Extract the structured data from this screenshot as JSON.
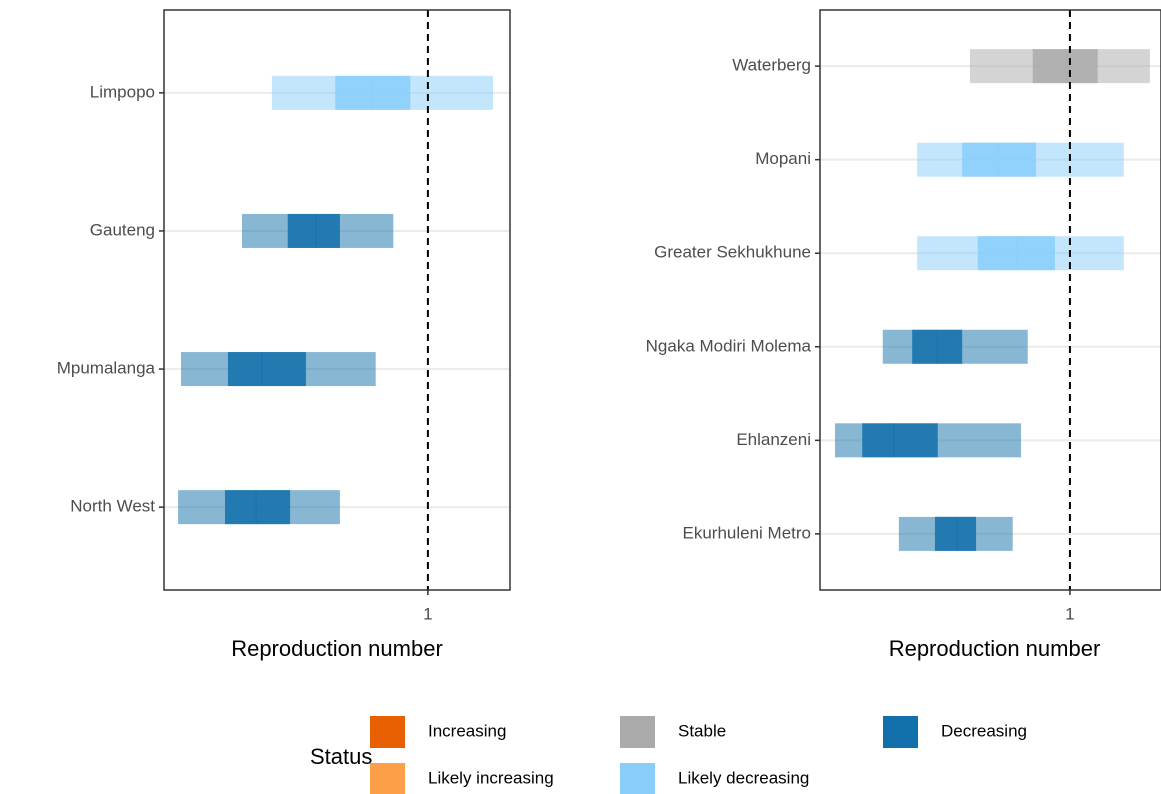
{
  "chart_data": [
    {
      "type": "interval",
      "xlabel": "Reproduction number",
      "xlim": [
        0.55,
        1.14
      ],
      "xticks": [
        1
      ],
      "vline": 1,
      "categories": [
        "Limpopo",
        "Gauteng",
        "Mpumalanga",
        "North West"
      ],
      "status": [
        "Likely decreasing",
        "Decreasing",
        "Decreasing",
        "Decreasing"
      ],
      "lower_90": [
        0.734,
        0.683,
        0.579,
        0.574
      ],
      "upper_90": [
        1.111,
        0.941,
        0.911,
        0.85
      ],
      "lower_50": [
        0.842,
        0.761,
        0.659,
        0.654
      ],
      "upper_50": [
        0.97,
        0.85,
        0.792,
        0.765
      ],
      "median": [
        0.906,
        0.809,
        0.717,
        0.707
      ]
    },
    {
      "type": "interval",
      "xlabel": "Reproduction number",
      "xlim": [
        0.55,
        1.164
      ],
      "xticks": [
        1
      ],
      "vline": 1,
      "categories": [
        "Waterberg",
        "Mopani",
        "Greater Sekhukhune",
        "Ngaka Modiri Molema",
        "Ehlanzeni",
        "Ekurhuleni Metro"
      ],
      "status": [
        "Stable",
        "Likely decreasing",
        "Likely decreasing",
        "Decreasing",
        "Decreasing",
        "Decreasing"
      ],
      "lower_90": [
        0.82,
        0.725,
        0.725,
        0.663,
        0.577,
        0.692
      ],
      "upper_90": [
        1.144,
        1.097,
        1.097,
        0.924,
        0.912,
        0.897
      ],
      "lower_50": [
        0.933,
        0.806,
        0.834,
        0.716,
        0.626,
        0.757
      ],
      "upper_50": [
        1.05,
        0.939,
        0.973,
        0.806,
        0.762,
        0.831
      ],
      "median": [
        0.993,
        0.87,
        0.905,
        0.761,
        0.683,
        0.797
      ]
    }
  ],
  "legend": {
    "title": "Status",
    "items": [
      {
        "label": "Increasing",
        "color": "#e75f00"
      },
      {
        "label": "Likely increasing",
        "color": "#fd9e49"
      },
      {
        "label": "Stable",
        "color": "#aaaaaa"
      },
      {
        "label": "Likely decreasing",
        "color": "#87cefa"
      },
      {
        "label": "Decreasing",
        "color": "#1170aa"
      }
    ]
  }
}
